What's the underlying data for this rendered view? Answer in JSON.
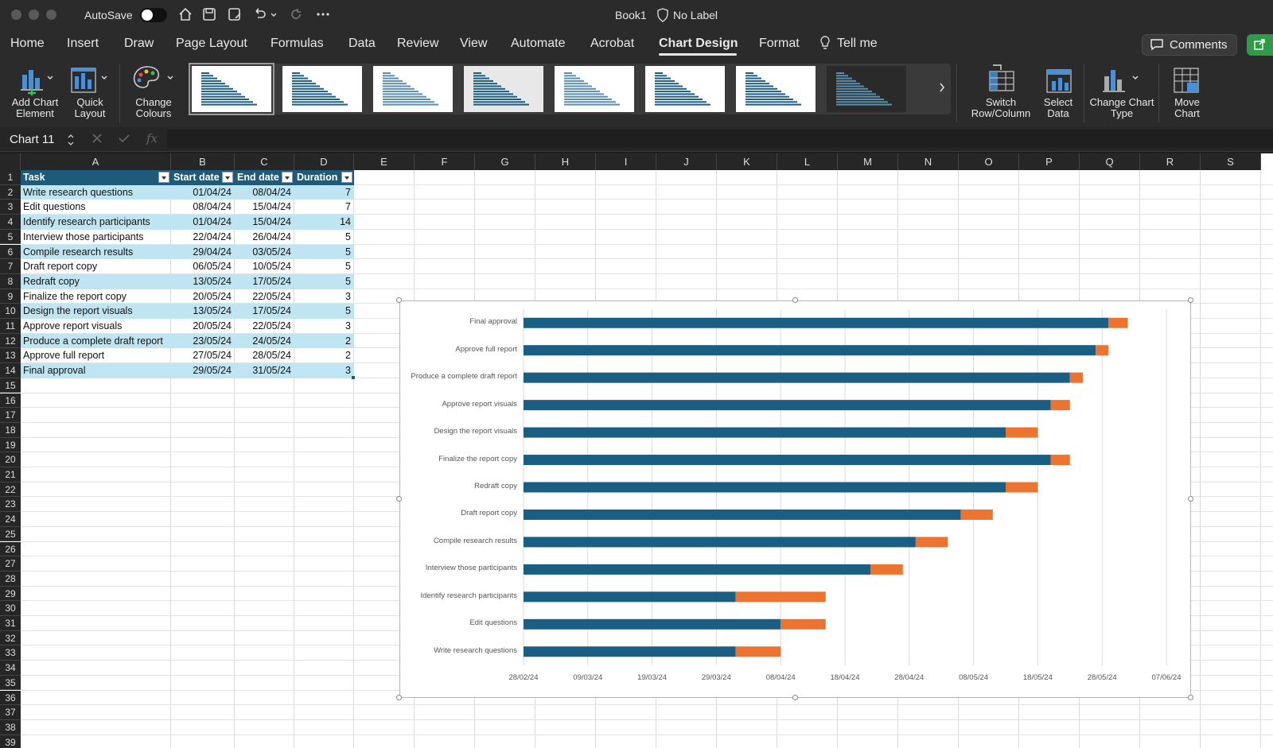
{
  "titlebar": {
    "autosave": "AutoSave",
    "filename": "Book1",
    "label": "No Label"
  },
  "menu": {
    "tabs": [
      "Home",
      "Insert",
      "Draw",
      "Page Layout",
      "Formulas",
      "Data",
      "Review",
      "View",
      "Automate",
      "Acrobat",
      "Chart Design",
      "Format",
      "Tell me"
    ],
    "active": "Chart Design",
    "comments": "Comments"
  },
  "ribbon": {
    "add_chart_element": "Add Chart Element",
    "quick_layout": "Quick Layout",
    "change_colours": "Change Colours",
    "switch_row_column": "Switch Row/Column",
    "select_data": "Select Data",
    "change_chart_type": "Change Chart Type",
    "move_chart": "Move Chart"
  },
  "formula_bar": {
    "name_box": "Chart 11",
    "fx": "fx"
  },
  "columns": [
    "A",
    "B",
    "C",
    "D",
    "E",
    "F",
    "G",
    "H",
    "I",
    "J",
    "K",
    "L",
    "M",
    "N",
    "O",
    "P",
    "Q",
    "R",
    "S"
  ],
  "table": {
    "headers": [
      "Task",
      "Start date",
      "End date",
      "Duration"
    ],
    "rows": [
      [
        "Write research questions",
        "01/04/24",
        "08/04/24",
        "7"
      ],
      [
        "Edit questions",
        "08/04/24",
        "15/04/24",
        "7"
      ],
      [
        "Identify research participants",
        "01/04/24",
        "15/04/24",
        "14"
      ],
      [
        "Interview those participants",
        "22/04/24",
        "26/04/24",
        "5"
      ],
      [
        "Compile research results",
        "29/04/24",
        "03/05/24",
        "5"
      ],
      [
        "Draft report copy",
        "06/05/24",
        "10/05/24",
        "5"
      ],
      [
        "Redraft copy",
        "13/05/24",
        "17/05/24",
        "5"
      ],
      [
        "Finalize the report copy",
        "20/05/24",
        "22/05/24",
        "3"
      ],
      [
        "Design the report visuals",
        "13/05/24",
        "17/05/24",
        "5"
      ],
      [
        "Approve report visuals",
        "20/05/24",
        "22/05/24",
        "3"
      ],
      [
        "Produce a complete draft report",
        "23/05/24",
        "24/05/24",
        "2"
      ],
      [
        "Approve full report",
        "27/05/24",
        "28/05/24",
        "2"
      ],
      [
        "Final approval",
        "29/05/24",
        "31/05/24",
        "3"
      ]
    ]
  },
  "chart_data": {
    "type": "bar",
    "orientation": "horizontal-stacked",
    "categories": [
      "Final approval",
      "Approve full report",
      "Produce a complete draft report",
      "Approve report visuals",
      "Design the report visuals",
      "Finalize the report copy",
      "Redraft copy",
      "Draft report copy",
      "Compile research results",
      "Interview those participants",
      "Identify research participants",
      "Edit questions",
      "Write research questions"
    ],
    "series": [
      {
        "values": [
          "29/05/24",
          "27/05/24",
          "23/05/24",
          "20/05/24",
          "13/05/24",
          "20/05/24",
          "13/05/24",
          "06/05/24",
          "29/04/24",
          "22/04/24",
          "01/04/24",
          "08/04/24",
          "01/04/24"
        ],
        "color": "#1b5e83"
      },
      {
        "values": [
          3,
          2,
          2,
          3,
          5,
          3,
          5,
          5,
          5,
          5,
          14,
          7,
          7
        ],
        "color": "#ed7430"
      }
    ],
    "x_ticks": [
      "28/02/24",
      "09/03/24",
      "19/03/24",
      "29/03/24",
      "08/04/24",
      "18/04/24",
      "28/04/24",
      "08/05/24",
      "18/05/24",
      "28/05/24",
      "07/06/24"
    ],
    "xlim": [
      "28/02/24",
      "07/06/24"
    ],
    "grid": true,
    "legend": "none"
  }
}
